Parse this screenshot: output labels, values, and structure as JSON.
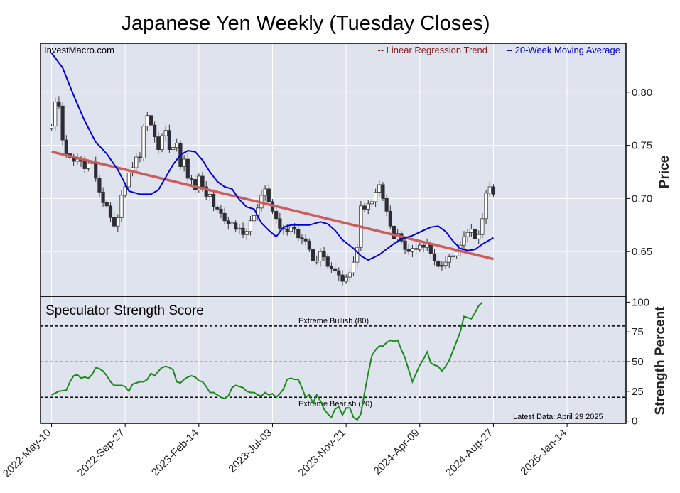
{
  "chart_data": {
    "type": "candlestick",
    "title": "Japanese Yen Weekly (Tuesday Closes)",
    "source": "InvestMacro.com",
    "legend": [
      {
        "label": "-- Linear Regression Trend",
        "color": "#8b1a1a"
      },
      {
        "label": "-- 20-Week Moving Average",
        "color": "#0000cc"
      }
    ],
    "colors": {
      "panel_bg": "#dfe3ee",
      "candle_up": "#ffffff",
      "candle_down": "#2b2b3a",
      "regression": "#cd5c5c",
      "moving_average": "#0000dd",
      "strength": "#1a8a1a"
    },
    "price_axis": {
      "label": "Price",
      "ylim": [
        0.608,
        0.846
      ],
      "ticks": [
        "0.80",
        "0.75",
        "0.70",
        "0.65"
      ]
    },
    "x_ticks": [
      "2022-May-10",
      "2022-Sep-27",
      "2023-Feb-14",
      "2023-Jul-03",
      "2023-Nov-21",
      "2024-Apr-09",
      "2024-Aug-27",
      "2025-Jan-14"
    ],
    "x_range_weeks": [
      -3,
      156
    ],
    "regression": {
      "start": 0.744,
      "end": 0.643
    },
    "closes": [
      0.768,
      0.791,
      0.787,
      0.755,
      0.742,
      0.738,
      0.735,
      0.737,
      0.735,
      0.728,
      0.733,
      0.734,
      0.719,
      0.706,
      0.696,
      0.693,
      0.682,
      0.674,
      0.682,
      0.703,
      0.711,
      0.724,
      0.729,
      0.739,
      0.738,
      0.768,
      0.778,
      0.769,
      0.758,
      0.746,
      0.759,
      0.764,
      0.746,
      0.748,
      0.752,
      0.73,
      0.737,
      0.719,
      0.718,
      0.708,
      0.721,
      0.711,
      0.702,
      0.704,
      0.692,
      0.69,
      0.686,
      0.679,
      0.676,
      0.677,
      0.671,
      0.672,
      0.666,
      0.669,
      0.679,
      0.684,
      0.691,
      0.703,
      0.709,
      0.697,
      0.688,
      0.681,
      0.672,
      0.671,
      0.669,
      0.673,
      0.671,
      0.663,
      0.662,
      0.66,
      0.652,
      0.641,
      0.641,
      0.65,
      0.645,
      0.636,
      0.634,
      0.632,
      0.628,
      0.622,
      0.626,
      0.63,
      0.64,
      0.654,
      0.693,
      0.69,
      0.695,
      0.697,
      0.706,
      0.713,
      0.7,
      0.688,
      0.674,
      0.662,
      0.667,
      0.66,
      0.652,
      0.65,
      0.653,
      0.652,
      0.656,
      0.654,
      0.657,
      0.648,
      0.641,
      0.636,
      0.637,
      0.64,
      0.645,
      0.646,
      0.65,
      0.656,
      0.664,
      0.668,
      0.671,
      0.662,
      0.666,
      0.681,
      0.705,
      0.711,
      0.704
    ],
    "moving_average": [
      [
        0,
        0.837
      ],
      [
        3,
        0.823
      ],
      [
        6,
        0.797
      ],
      [
        9,
        0.773
      ],
      [
        12,
        0.753
      ],
      [
        15,
        0.742
      ],
      [
        18,
        0.727
      ],
      [
        21,
        0.707
      ],
      [
        24,
        0.704
      ],
      [
        27,
        0.704
      ],
      [
        29,
        0.708
      ],
      [
        31,
        0.72
      ],
      [
        33,
        0.732
      ],
      [
        35,
        0.741
      ],
      [
        37,
        0.745
      ],
      [
        39,
        0.744
      ],
      [
        41,
        0.736
      ],
      [
        43,
        0.725
      ],
      [
        45,
        0.716
      ],
      [
        47,
        0.711
      ],
      [
        49,
        0.709
      ],
      [
        51,
        0.699
      ],
      [
        53,
        0.692
      ],
      [
        55,
        0.69
      ],
      [
        57,
        0.677
      ],
      [
        59,
        0.67
      ],
      [
        61,
        0.664
      ],
      [
        63,
        0.673
      ],
      [
        65,
        0.675
      ],
      [
        67,
        0.675
      ],
      [
        70,
        0.675
      ],
      [
        73,
        0.678
      ],
      [
        75,
        0.676
      ],
      [
        77,
        0.67
      ],
      [
        79,
        0.661
      ],
      [
        82,
        0.653
      ],
      [
        84,
        0.646
      ],
      [
        86,
        0.642
      ],
      [
        89,
        0.647
      ],
      [
        92,
        0.655
      ],
      [
        95,
        0.662
      ],
      [
        98,
        0.665
      ],
      [
        101,
        0.67
      ],
      [
        103,
        0.673
      ],
      [
        105,
        0.674
      ],
      [
        107,
        0.669
      ],
      [
        109,
        0.66
      ],
      [
        111,
        0.653
      ],
      [
        113,
        0.651
      ],
      [
        115,
        0.652
      ],
      [
        117,
        0.657
      ],
      [
        120,
        0.663
      ]
    ],
    "strength": {
      "label": "Strength Percent",
      "title": "Speculator Strength Score",
      "ylim": [
        -2,
        105
      ],
      "ticks": [
        "100",
        "75",
        "50",
        "25",
        "0"
      ],
      "lines": [
        {
          "value": 80,
          "label": "Extreme Bullish (80)",
          "color": "#000000"
        },
        {
          "value": 50,
          "label": "",
          "color": "#777777"
        },
        {
          "value": 20,
          "label": "Extreme Bearish (20)",
          "color": "#000000"
        }
      ],
      "values": [
        [
          0,
          22
        ],
        [
          2,
          25
        ],
        [
          4,
          26
        ],
        [
          5,
          33
        ],
        [
          6,
          38
        ],
        [
          7,
          39
        ],
        [
          8,
          36
        ],
        [
          9,
          37
        ],
        [
          10,
          36
        ],
        [
          11,
          39
        ],
        [
          12,
          45
        ],
        [
          13,
          44
        ],
        [
          14,
          42
        ],
        [
          15,
          38
        ],
        [
          16,
          33
        ],
        [
          17,
          30
        ],
        [
          18,
          30
        ],
        [
          19,
          30
        ],
        [
          20,
          29
        ],
        [
          21,
          25
        ],
        [
          22,
          31
        ],
        [
          23,
          32
        ],
        [
          24,
          33
        ],
        [
          25,
          33
        ],
        [
          26,
          35
        ],
        [
          27,
          40
        ],
        [
          28,
          38
        ],
        [
          29,
          42
        ],
        [
          30,
          45
        ],
        [
          31,
          46
        ],
        [
          32,
          45
        ],
        [
          33,
          43
        ],
        [
          34,
          33
        ],
        [
          35,
          32
        ],
        [
          36,
          35
        ],
        [
          37,
          37
        ],
        [
          38,
          38
        ],
        [
          39,
          37
        ],
        [
          40,
          34
        ],
        [
          41,
          33
        ],
        [
          42,
          29
        ],
        [
          43,
          24
        ],
        [
          44,
          24
        ],
        [
          45,
          22
        ],
        [
          46,
          20
        ],
        [
          47,
          19
        ],
        [
          48,
          21
        ],
        [
          49,
          28
        ],
        [
          50,
          30
        ],
        [
          51,
          29
        ],
        [
          52,
          28
        ],
        [
          53,
          25
        ],
        [
          54,
          24
        ],
        [
          55,
          24
        ],
        [
          56,
          22
        ],
        [
          57,
          21
        ],
        [
          58,
          24
        ],
        [
          59,
          22
        ],
        [
          60,
          23
        ],
        [
          61,
          20
        ],
        [
          62,
          23
        ],
        [
          63,
          27
        ],
        [
          64,
          35
        ],
        [
          65,
          36
        ],
        [
          66,
          35
        ],
        [
          67,
          35
        ],
        [
          68,
          28
        ],
        [
          69,
          20
        ],
        [
          70,
          22
        ],
        [
          71,
          15
        ],
        [
          72,
          22
        ],
        [
          73,
          17
        ],
        [
          74,
          10
        ],
        [
          75,
          6
        ],
        [
          76,
          3
        ],
        [
          77,
          10
        ],
        [
          78,
          12
        ],
        [
          79,
          5
        ],
        [
          80,
          11
        ],
        [
          81,
          11
        ],
        [
          82,
          3
        ],
        [
          83,
          1
        ],
        [
          84,
          6
        ],
        [
          85,
          24
        ],
        [
          86,
          40
        ],
        [
          87,
          55
        ],
        [
          88,
          60
        ],
        [
          89,
          63
        ],
        [
          90,
          63
        ],
        [
          91,
          66
        ],
        [
          92,
          68
        ],
        [
          93,
          67
        ],
        [
          94,
          68
        ],
        [
          95,
          60
        ],
        [
          96,
          53
        ],
        [
          97,
          43
        ],
        [
          98,
          33
        ],
        [
          99,
          40
        ],
        [
          100,
          47
        ],
        [
          101,
          52
        ],
        [
          102,
          58
        ],
        [
          103,
          49
        ],
        [
          104,
          47
        ],
        [
          105,
          46
        ],
        [
          106,
          42
        ],
        [
          107,
          46
        ],
        [
          108,
          51
        ],
        [
          109,
          59
        ],
        [
          110,
          67
        ],
        [
          111,
          75
        ],
        [
          112,
          88
        ],
        [
          113,
          87
        ],
        [
          114,
          86
        ],
        [
          115,
          91
        ],
        [
          116,
          97
        ],
        [
          117,
          100
        ]
      ],
      "footnote": "Latest Data: April 29 2025"
    }
  }
}
